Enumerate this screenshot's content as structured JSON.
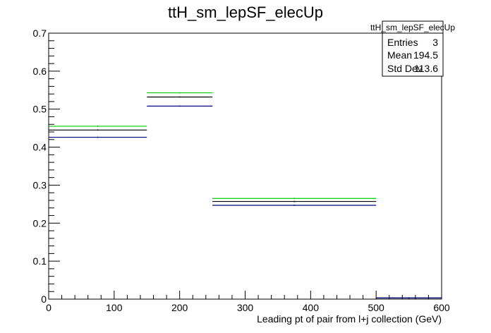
{
  "chart_data": {
    "type": "histogram-steps",
    "title": "ttH_sm_lepSF_elecUp",
    "xlabel": "Leading pt of pair from l+j collection (GeV)",
    "ylabel": "",
    "xlim": [
      0,
      600
    ],
    "ylim": [
      0,
      0.7
    ],
    "x_ticks": [
      0,
      100,
      200,
      300,
      400,
      500,
      600
    ],
    "y_ticks": [
      0,
      0.1,
      0.2,
      0.3,
      0.4,
      0.5,
      0.6,
      0.7
    ],
    "bins": [
      {
        "x_low": 0,
        "x_high": 150
      },
      {
        "x_low": 150,
        "x_high": 250
      },
      {
        "x_low": 250,
        "x_high": 500
      },
      {
        "x_low": 500,
        "x_high": 600
      }
    ],
    "series": [
      {
        "color": "#00cc00",
        "values": [
          0.455,
          0.543,
          0.265,
          0.003
        ]
      },
      {
        "color": "#000000",
        "values": [
          0.445,
          0.532,
          0.257,
          0.003
        ]
      },
      {
        "color": "#000080",
        "values": [
          0.426,
          0.508,
          0.247,
          0.003
        ]
      }
    ],
    "grid": false,
    "legend": "none"
  },
  "stats_box": {
    "title": "ttH_sm_lepSF_elecUp",
    "rows": [
      {
        "label": "Entries",
        "value": "3"
      },
      {
        "label": "Mean",
        "value": "194.5"
      },
      {
        "label": "Std Dev",
        "value": "113.6"
      }
    ]
  }
}
